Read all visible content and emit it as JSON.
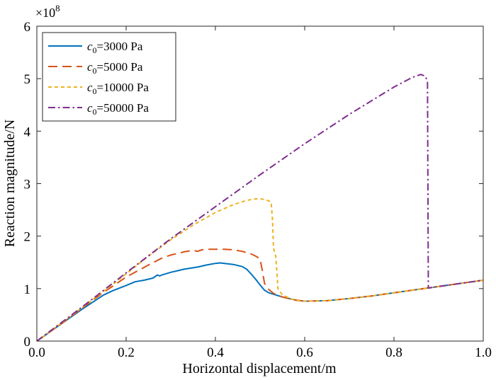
{
  "chart_data": {
    "type": "line",
    "title": "",
    "xlabel": "Horizontal displacement/m",
    "ylabel": "Reaction magnitude/N",
    "y_multiplier_base": "×10",
    "y_multiplier_exp": "8",
    "xlim": [
      0,
      1.0
    ],
    "ylim": [
      0,
      6
    ],
    "x_ticks": [
      0.0,
      0.2,
      0.4,
      0.6,
      0.8,
      1.0
    ],
    "x_tick_labels": [
      "0.0",
      "0.2",
      "0.4",
      "0.6",
      "0.8",
      "1.0"
    ],
    "y_ticks": [
      0,
      1,
      2,
      3,
      4,
      5,
      6
    ],
    "y_tick_labels": [
      "0",
      "1",
      "2",
      "3",
      "4",
      "5",
      "6"
    ],
    "grid": false,
    "legend_position": "top-left",
    "series": [
      {
        "name_symbol": "c",
        "name_sub": "0",
        "name_rest": "=3000 Pa",
        "color": "#0072BD",
        "style": "solid",
        "x": [
          0,
          0.05,
          0.1,
          0.15,
          0.17,
          0.2,
          0.22,
          0.24,
          0.25,
          0.26,
          0.27,
          0.275,
          0.28,
          0.3,
          0.33,
          0.36,
          0.38,
          0.4,
          0.41,
          0.42,
          0.44,
          0.46,
          0.47,
          0.48,
          0.49,
          0.5,
          0.51,
          0.52,
          0.55,
          0.58,
          0.6,
          0.65,
          0.7,
          0.75,
          0.8,
          0.85,
          0.9,
          0.95,
          1.0
        ],
        "y": [
          0,
          0.3,
          0.6,
          0.88,
          0.96,
          1.06,
          1.13,
          1.16,
          1.18,
          1.2,
          1.26,
          1.24,
          1.26,
          1.31,
          1.37,
          1.41,
          1.45,
          1.48,
          1.49,
          1.48,
          1.46,
          1.42,
          1.37,
          1.28,
          1.18,
          1.07,
          0.97,
          0.92,
          0.84,
          0.78,
          0.76,
          0.77,
          0.81,
          0.86,
          0.92,
          0.98,
          1.04,
          1.1,
          1.16
        ]
      },
      {
        "name_symbol": "c",
        "name_sub": "0",
        "name_rest": "=5000 Pa",
        "color": "#D95319",
        "style": "dashed",
        "x": [
          0,
          0.05,
          0.1,
          0.15,
          0.2,
          0.25,
          0.28,
          0.3,
          0.33,
          0.35,
          0.36,
          0.37,
          0.38,
          0.4,
          0.42,
          0.44,
          0.46,
          0.48,
          0.49,
          0.5,
          0.505,
          0.51,
          0.52,
          0.53,
          0.55,
          0.58,
          0.6,
          0.65,
          0.7,
          0.75,
          0.8,
          0.85,
          0.9,
          0.95,
          1.0
        ],
        "y": [
          0,
          0.3,
          0.62,
          0.93,
          1.22,
          1.45,
          1.58,
          1.64,
          1.7,
          1.73,
          1.71,
          1.74,
          1.75,
          1.75,
          1.75,
          1.74,
          1.71,
          1.66,
          1.62,
          1.57,
          1.35,
          1.1,
          0.98,
          0.91,
          0.84,
          0.78,
          0.76,
          0.77,
          0.81,
          0.86,
          0.92,
          0.98,
          1.04,
          1.1,
          1.16
        ]
      },
      {
        "name_symbol": "c",
        "name_sub": "0",
        "name_rest": "=10000 Pa",
        "color": "#EDB120",
        "style": "dotted",
        "x": [
          0,
          0.05,
          0.1,
          0.15,
          0.2,
          0.25,
          0.3,
          0.35,
          0.4,
          0.44,
          0.47,
          0.49,
          0.5,
          0.51,
          0.52,
          0.525,
          0.528,
          0.53,
          0.532,
          0.535,
          0.538,
          0.54,
          0.55,
          0.57,
          0.6,
          0.65,
          0.7,
          0.75,
          0.8,
          0.85,
          0.9,
          0.95,
          1.0
        ],
        "y": [
          0,
          0.31,
          0.63,
          0.95,
          1.28,
          1.62,
          1.93,
          2.21,
          2.45,
          2.6,
          2.68,
          2.71,
          2.71,
          2.7,
          2.67,
          2.63,
          2.3,
          1.8,
          1.7,
          1.62,
          1.3,
          1.0,
          0.88,
          0.8,
          0.76,
          0.77,
          0.81,
          0.86,
          0.92,
          0.98,
          1.04,
          1.1,
          1.16
        ]
      },
      {
        "name_symbol": "c",
        "name_sub": "0",
        "name_rest": "=50000 Pa",
        "color": "#7E2F8E",
        "style": "dashdot",
        "x": [
          0,
          0.1,
          0.2,
          0.3,
          0.4,
          0.5,
          0.6,
          0.7,
          0.8,
          0.84,
          0.86,
          0.87,
          0.875,
          0.876,
          0.877,
          0.9,
          0.95,
          1.0
        ],
        "y": [
          0,
          0.64,
          1.3,
          1.95,
          2.56,
          3.17,
          3.76,
          4.32,
          4.84,
          5.02,
          5.08,
          5.05,
          4.95,
          3.0,
          1.01,
          1.04,
          1.1,
          1.16
        ]
      }
    ]
  }
}
